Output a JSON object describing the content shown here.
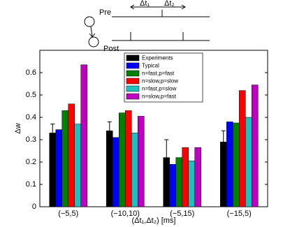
{
  "diagram": {
    "pre": "Pre",
    "post": "Post",
    "dt1": "Δt₁",
    "dt2": "Δt₂"
  },
  "chart_data": {
    "type": "bar",
    "x_label": "(Δt₁,Δt₂) [ms]",
    "y_label": "Δw",
    "categories": [
      "(−5,5)",
      "(−10,10)",
      "(−5,15)",
      "(−15,5)"
    ],
    "series": [
      {
        "name": "Experiments",
        "color": "#000000",
        "values": [
          0.33,
          0.34,
          0.22,
          0.29
        ],
        "errors": [
          0.04,
          0.04,
          0.08,
          0.05
        ]
      },
      {
        "name": "Typical",
        "color": "#0000ff",
        "values": [
          0.345,
          0.31,
          0.19,
          0.38
        ]
      },
      {
        "name": "n=fast,p=fast",
        "color": "#008000",
        "values": [
          0.43,
          0.42,
          0.22,
          0.375
        ]
      },
      {
        "name": "n=slow,p=slow",
        "color": "#ff0000",
        "values": [
          0.46,
          0.43,
          0.265,
          0.52
        ]
      },
      {
        "name": "n=fast,p=slow",
        "color": "#20c0c0",
        "values": [
          0.37,
          0.33,
          0.205,
          0.4
        ]
      },
      {
        "name": "n=slow,p=fast",
        "color": "#c000c0",
        "values": [
          0.635,
          0.405,
          0.265,
          0.545
        ]
      }
    ],
    "ylim": [
      0,
      0.7
    ],
    "yticks": [
      0,
      0.1,
      0.2,
      0.3,
      0.4,
      0.5,
      0.6
    ],
    "legend": "upper center",
    "grid": false
  }
}
